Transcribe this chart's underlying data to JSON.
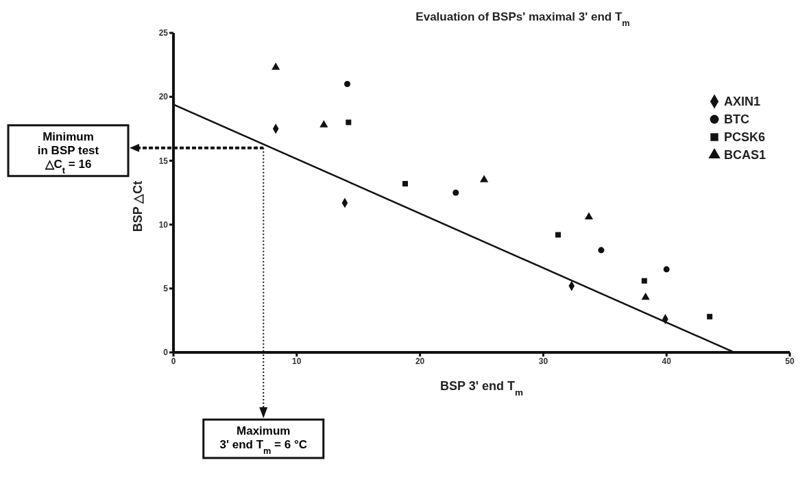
{
  "chart_data": {
    "type": "scatter",
    "title": "Evaluation of BSPs' maximal 3' end T$_{m}$",
    "xlabel": "BSP 3' end T$_{m}$",
    "ylabel": "BSP △Ct",
    "xlim": [
      0,
      50
    ],
    "xticks": [
      0,
      10,
      20,
      30,
      40,
      50
    ],
    "ylim": [
      0,
      25
    ],
    "yticks": [
      0,
      5,
      10,
      15,
      20,
      25
    ],
    "legend": "top right",
    "series": [
      {
        "name": "AXIN1",
        "color": "#111111",
        "marker": "diamond",
        "x": [
          8.3,
          13.9,
          32.3,
          39.9
        ],
        "values": [
          17.5,
          11.7,
          5.2,
          2.6
        ]
      },
      {
        "name": "BTC",
        "color": "#111111",
        "marker": "circle",
        "x": [
          14.1,
          22.9,
          34.7,
          40.0
        ],
        "values": [
          21.0,
          12.5,
          8.0,
          6.5
        ]
      },
      {
        "name": "PCSK6",
        "color": "#111111",
        "marker": "square",
        "x": [
          14.2,
          18.8,
          31.2,
          38.2,
          43.5
        ],
        "values": [
          18.0,
          13.2,
          9.2,
          5.6,
          2.8
        ]
      },
      {
        "name": "BCAS1",
        "color": "#111111",
        "marker": "triangle",
        "x": [
          8.3,
          12.2,
          25.2,
          33.7,
          38.3
        ],
        "values": [
          22.3,
          17.8,
          13.5,
          10.6,
          4.3
        ]
      },
      {
        "type": "line",
        "color": "#111111",
        "marker": "none",
        "x": [
          0,
          45.5
        ],
        "values": [
          19.4,
          0
        ]
      },
      {
        "type": "line",
        "color": "#111111",
        "marker": "none",
        "line_style": "dashed",
        "x": [
          0,
          7.3
        ],
        "values": [
          16,
          16
        ]
      },
      {
        "type": "line",
        "color": "#111111",
        "marker": "none",
        "line_style": "dotted",
        "x": [
          7.3,
          7.3
        ],
        "values": [
          16,
          0
        ]
      }
    ],
    "annotations": [
      "Minimum\nin BSP test\n△C$_{t}$ = 16",
      "Maximum\n3' end T$_{m}$ = 6 °C"
    ]
  }
}
